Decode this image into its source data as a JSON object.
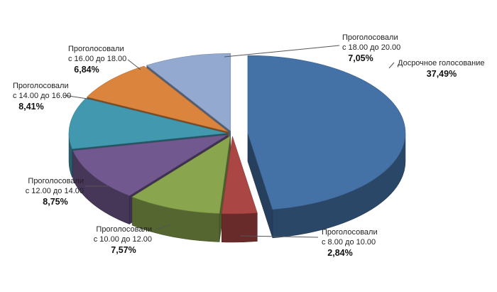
{
  "chart_data": {
    "type": "pie",
    "style": "3d-exploded",
    "slices": [
      {
        "name": "Досрочное голосование",
        "value": 37.49,
        "value_label": "37,49%",
        "color": "#4472A7"
      },
      {
        "name": "Проголосовали с 8.00 до 10.00",
        "line1": "Проголосовали",
        "line2": "с 8.00 до 10.00",
        "value": 2.84,
        "value_label": "2,84%",
        "color": "#AA4643"
      },
      {
        "name": "Проголосовали с 10.00 до 12.00",
        "line1": "Проголосовали",
        "line2": "с 10.00 до 12.00",
        "value": 7.57,
        "value_label": "7,57%",
        "color": "#89A54E"
      },
      {
        "name": "Проголосовали с 12.00 до 14.00",
        "line1": "Проголосовали",
        "line2": "с 12.00 до 14.00",
        "value": 8.75,
        "value_label": "8,75%",
        "color": "#71588F"
      },
      {
        "name": "Проголосовали с 14.00 до 16.00",
        "line1": "Проголосовали",
        "line2": "с 14.00 до 16.00",
        "value": 8.41,
        "value_label": "8,41%",
        "color": "#4198AF"
      },
      {
        "name": "Проголосовали с 16.00 до 18.00",
        "line1": "Проголосовали",
        "line2": "с 16.00 до 18.00",
        "value": 6.84,
        "value_label": "6,84%",
        "color": "#DB843D"
      },
      {
        "name": "Проголосовали с 18.00 до 20.00",
        "line1": "Проголосовали",
        "line2": "с 18.00 до 20.00",
        "value": 7.05,
        "value_label": "7,05%",
        "color": "#93A9CF"
      }
    ]
  }
}
